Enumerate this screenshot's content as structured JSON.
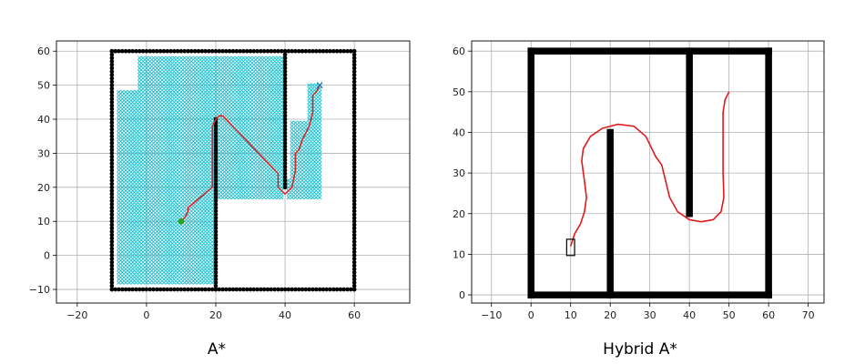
{
  "chart_data": [
    {
      "type": "scatter",
      "title": "A*",
      "xlim": [
        -26,
        76
      ],
      "ylim": [
        -14,
        63
      ],
      "xticks": [
        -20,
        0,
        20,
        40,
        60
      ],
      "yticks": [
        -10,
        0,
        10,
        20,
        30,
        40,
        50,
        60
      ],
      "grid": true,
      "walls": [
        {
          "from": [
            -10,
            -10
          ],
          "to": [
            60,
            -10
          ]
        },
        {
          "from": [
            60,
            -10
          ],
          "to": [
            60,
            60
          ]
        },
        {
          "from": [
            60,
            60
          ],
          "to": [
            -10,
            60
          ]
        },
        {
          "from": [
            -10,
            60
          ],
          "to": [
            -10,
            -10
          ]
        },
        {
          "from": [
            20,
            -10
          ],
          "to": [
            20,
            40
          ]
        },
        {
          "from": [
            40,
            20
          ],
          "to": [
            40,
            60
          ]
        }
      ],
      "explored_color": "#17becf",
      "explored_region": [
        {
          "y0": -8,
          "y1": 16,
          "x0": -8,
          "x1": 19
        },
        {
          "y0": 17,
          "y1": 48,
          "x0": -8,
          "x1": 39
        },
        {
          "y0": 49,
          "y1": 58,
          "x0": -2,
          "x1": 39
        },
        {
          "y0": 17,
          "y1": 22,
          "x0": 41,
          "x1": 50
        },
        {
          "y0": 23,
          "y1": 39,
          "x0": 42,
          "x1": 50
        },
        {
          "y0": 40,
          "y1": 50,
          "x0": 47,
          "x1": 50
        }
      ],
      "path": [
        [
          10,
          10
        ],
        [
          11,
          11
        ],
        [
          12,
          13
        ],
        [
          12,
          14
        ],
        [
          19,
          20
        ],
        [
          19,
          38
        ],
        [
          20,
          40
        ],
        [
          21,
          41
        ],
        [
          22,
          41
        ],
        [
          38,
          24
        ],
        [
          38,
          20
        ],
        [
          40,
          18
        ],
        [
          42,
          20
        ],
        [
          43,
          25
        ],
        [
          43,
          30
        ],
        [
          44,
          31
        ],
        [
          45,
          34
        ],
        [
          46,
          36
        ],
        [
          47,
          38
        ],
        [
          48,
          42
        ],
        [
          48,
          47
        ],
        [
          49,
          48
        ],
        [
          50,
          50
        ]
      ],
      "path_color": "#d62728",
      "start": [
        10,
        10
      ],
      "start_color": "#2ca02c",
      "goal": [
        50,
        50
      ]
    },
    {
      "type": "line",
      "title": "Hybrid A*",
      "xlim": [
        -15,
        74
      ],
      "ylim": [
        -2,
        62.5
      ],
      "xticks": [
        -10,
        0,
        10,
        20,
        30,
        40,
        50,
        60,
        70
      ],
      "yticks": [
        0,
        10,
        20,
        30,
        40,
        50,
        60
      ],
      "grid": true,
      "walls": [
        {
          "from": [
            0,
            0
          ],
          "to": [
            60,
            0
          ]
        },
        {
          "from": [
            60,
            0
          ],
          "to": [
            60,
            60
          ]
        },
        {
          "from": [
            60,
            60
          ],
          "to": [
            0,
            60
          ]
        },
        {
          "from": [
            0,
            60
          ],
          "to": [
            0,
            0
          ]
        },
        {
          "from": [
            20,
            0
          ],
          "to": [
            20,
            40
          ]
        },
        {
          "from": [
            40,
            20
          ],
          "to": [
            40,
            60
          ]
        }
      ],
      "path": [
        [
          10,
          12
        ],
        [
          11,
          15
        ],
        [
          12.5,
          17.5
        ],
        [
          13.5,
          20.5
        ],
        [
          14,
          24
        ],
        [
          13.5,
          28
        ],
        [
          12.8,
          33
        ],
        [
          13.2,
          36
        ],
        [
          15,
          39
        ],
        [
          18,
          41
        ],
        [
          22,
          42
        ],
        [
          26,
          41.5
        ],
        [
          29,
          39
        ],
        [
          31.5,
          34
        ],
        [
          33,
          32
        ],
        [
          34,
          28
        ],
        [
          35,
          24
        ],
        [
          37,
          20.5
        ],
        [
          40,
          18.5
        ],
        [
          43,
          18
        ],
        [
          46,
          18.5
        ],
        [
          48,
          20.5
        ],
        [
          48.7,
          24
        ],
        [
          48.5,
          30
        ],
        [
          48.5,
          40
        ],
        [
          48.5,
          45
        ],
        [
          49,
          48
        ],
        [
          50,
          50
        ]
      ],
      "path_color": "#e31a1c",
      "vehicle": {
        "x": 10,
        "y": 11.7,
        "w": 2,
        "h": 4,
        "color": "#000000"
      }
    }
  ],
  "captions": {
    "left": "A*",
    "right": "Hybrid A*"
  }
}
